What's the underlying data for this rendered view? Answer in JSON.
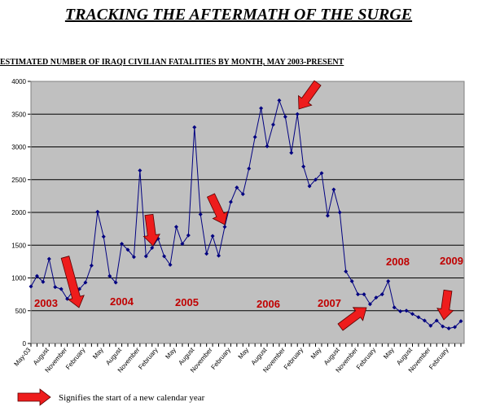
{
  "chart_data": {
    "type": "line",
    "title": "TRACKING THE AFTERMATH OF THE SURGE",
    "subtitle": "ESTIMATED NUMBER OF IRAQI CIVILIAN FATALITIES BY MONTH, MAY 2003-PRESENT",
    "categories": [
      "May-03",
      null,
      null,
      "August",
      null,
      null,
      "November",
      null,
      null,
      "February",
      null,
      null,
      "May",
      null,
      null,
      "August",
      null,
      null,
      "November",
      null,
      null,
      "February",
      null,
      null,
      "May",
      null,
      null,
      "August",
      null,
      null,
      "November",
      null,
      null,
      "February",
      null,
      null,
      "May",
      null,
      null,
      "August",
      null,
      null,
      "November",
      null,
      null,
      "February",
      null,
      null,
      "May",
      null,
      null,
      "August",
      null,
      null,
      "November",
      null,
      null,
      "February",
      null,
      null,
      "May",
      null,
      null,
      "August",
      null,
      null,
      "November",
      null,
      null,
      "February",
      null,
      null
    ],
    "values": [
      870,
      1030,
      940,
      1290,
      860,
      830,
      680,
      810,
      830,
      930,
      1190,
      2010,
      1630,
      1030,
      930,
      1520,
      1430,
      1320,
      2640,
      1330,
      1460,
      1600,
      1330,
      1200,
      1780,
      1520,
      1650,
      3300,
      1970,
      1370,
      1640,
      1340,
      1780,
      2160,
      2380,
      2280,
      2670,
      3150,
      3590,
      3010,
      3340,
      3710,
      3460,
      2910,
      3500,
      2700,
      2400,
      2500,
      2600,
      1950,
      2350,
      2000,
      1100,
      950,
      750,
      750,
      600,
      700,
      750,
      950,
      550,
      490,
      500,
      450,
      400,
      350,
      270,
      350,
      260,
      230,
      250,
      340
    ],
    "color": "#000080",
    "ylim": [
      0,
      4000
    ],
    "yticks": [
      0,
      500,
      1000,
      1500,
      2000,
      2500,
      3000,
      3500,
      4000
    ],
    "grid": true,
    "annotations": [
      "2003",
      "2004",
      "2005",
      "2006",
      "2007",
      "2008",
      "2009"
    ],
    "note": "Signifies the start of a new calendar year"
  }
}
